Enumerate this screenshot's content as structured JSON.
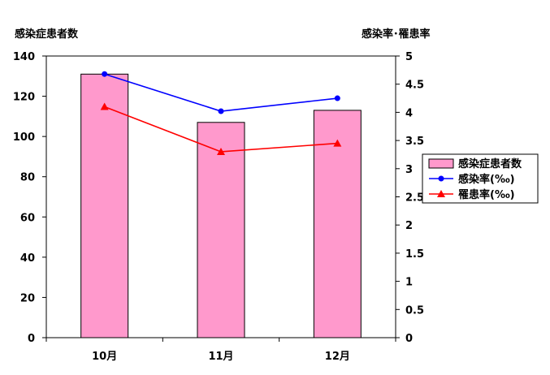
{
  "chart_data": {
    "type": "bar",
    "categories": [
      "10月",
      "11月",
      "12月"
    ],
    "left_axis_title": "感染症患者数",
    "right_axis_title": "感染率･罹患率",
    "left_ylim": [
      0,
      140
    ],
    "left_ticks": [
      "0",
      "20",
      "40",
      "60",
      "80",
      "100",
      "120",
      "140"
    ],
    "right_ylim": [
      0,
      5
    ],
    "right_ticks": [
      "0",
      "0.5",
      "1",
      "1.5",
      "2",
      "2.5",
      "3",
      "3.5",
      "4",
      "4.5",
      "5"
    ],
    "grid": false,
    "legend_position": "right",
    "series": [
      {
        "name": "感染症患者数",
        "kind": "bar",
        "axis": "left",
        "color": "#ff99cc",
        "values": [
          131,
          107,
          113
        ]
      },
      {
        "name": "感染率(‰)",
        "kind": "line",
        "marker": "circle",
        "axis": "right",
        "color": "#0000ff",
        "values": [
          4.68,
          4.02,
          4.25
        ]
      },
      {
        "name": "罹患率(‰)",
        "kind": "line",
        "marker": "triangle",
        "axis": "right",
        "color": "#ff0000",
        "values": [
          4.1,
          3.3,
          3.45
        ]
      }
    ]
  }
}
